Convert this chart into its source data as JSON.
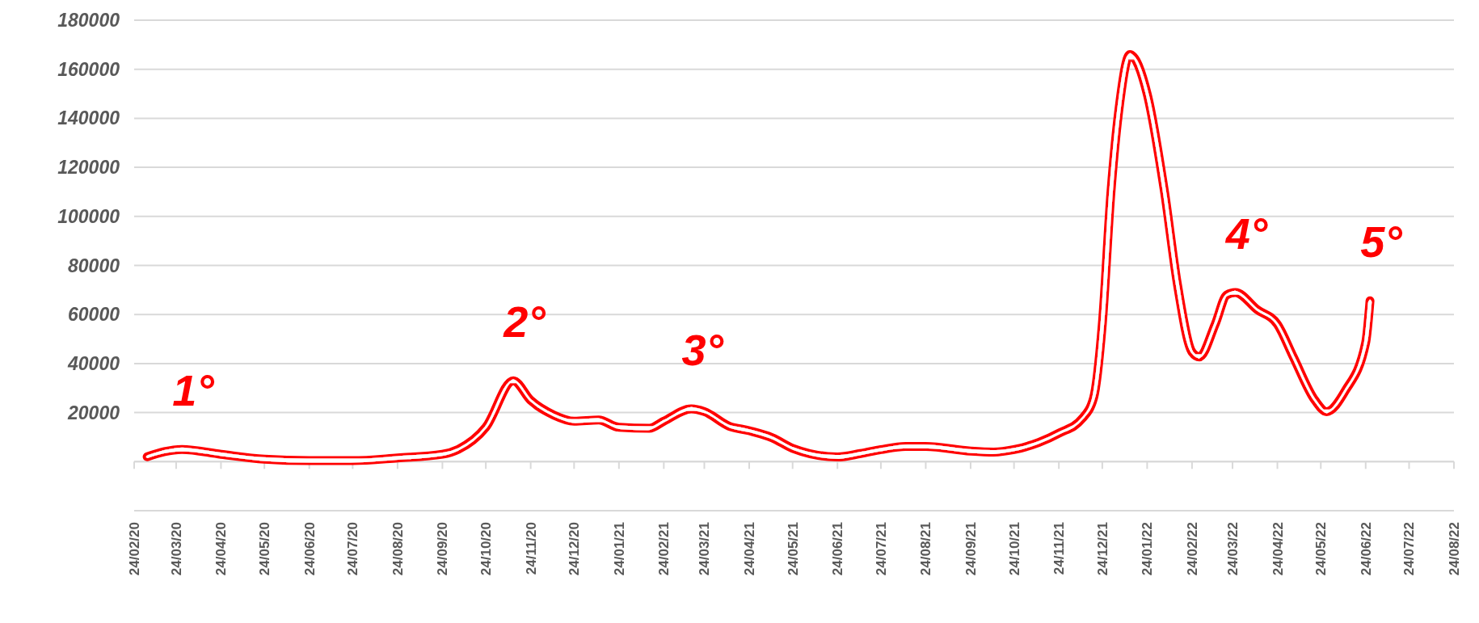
{
  "chart_data": {
    "type": "line",
    "x": [
      "2020-03-04",
      "2020-03-28",
      "2020-04-24",
      "2020-05-24",
      "2020-06-24",
      "2020-07-24",
      "2020-08-24",
      "2020-09-24",
      "2020-10-05",
      "2020-10-24",
      "2020-11-12",
      "2020-11-24",
      "2020-12-10",
      "2020-12-24",
      "2021-01-10",
      "2021-01-24",
      "2021-02-14",
      "2021-02-24",
      "2021-03-15",
      "2021-03-24",
      "2021-04-10",
      "2021-04-24",
      "2021-05-10",
      "2021-05-24",
      "2021-06-24",
      "2021-07-10",
      "2021-07-24",
      "2021-08-10",
      "2021-08-24",
      "2021-09-24",
      "2021-10-10",
      "2021-10-24",
      "2021-11-10",
      "2021-11-24",
      "2021-12-10",
      "2021-12-18",
      "2021-12-24",
      "2021-12-30",
      "2022-01-05",
      "2022-01-12",
      "2022-01-24",
      "2022-02-05",
      "2022-02-14",
      "2022-02-24",
      "2022-03-01",
      "2022-03-12",
      "2022-03-20",
      "2022-03-26",
      "2022-04-10",
      "2022-04-24",
      "2022-05-05",
      "2022-05-20",
      "2022-05-28",
      "2022-06-10",
      "2022-06-24",
      "2022-06-27"
    ],
    "series": [
      {
        "color": "#ff0000",
        "values": [
          2000,
          5000,
          3000,
          1000,
          400,
          400,
          1500,
          3000,
          5000,
          14000,
          33000,
          25000,
          19000,
          16500,
          17000,
          14000,
          13600,
          16500,
          21500,
          20400,
          14500,
          12600,
          9700,
          5400,
          1900,
          3300,
          4900,
          6200,
          6200,
          4300,
          3900,
          4900,
          7800,
          11600,
          17500,
          26000,
          56000,
          110000,
          146000,
          166000,
          150000,
          110000,
          72000,
          44700,
          42700,
          56000,
          68000,
          69000,
          62000,
          56000,
          42700,
          25000,
          20400,
          29000,
          48500,
          65600
        ]
      }
    ],
    "xlim": [
      "2020-02-24",
      "2022-08-24"
    ],
    "xticks": [
      {
        "value": "2020-02-24",
        "label": "24/02/20"
      },
      {
        "value": "2020-03-24",
        "label": "24/03/20"
      },
      {
        "value": "2020-04-24",
        "label": "24/04/20"
      },
      {
        "value": "2020-05-24",
        "label": "24/05/20"
      },
      {
        "value": "2020-06-24",
        "label": "24/06/20"
      },
      {
        "value": "2020-07-24",
        "label": "24/07/20"
      },
      {
        "value": "2020-08-24",
        "label": "24/08/20"
      },
      {
        "value": "2020-09-24",
        "label": "24/09/20"
      },
      {
        "value": "2020-10-24",
        "label": "24/10/20"
      },
      {
        "value": "2020-11-24",
        "label": "24/11/20"
      },
      {
        "value": "2020-12-24",
        "label": "24/12/20"
      },
      {
        "value": "2021-01-24",
        "label": "24/01/21"
      },
      {
        "value": "2021-02-24",
        "label": "24/02/21"
      },
      {
        "value": "2021-03-24",
        "label": "24/03/21"
      },
      {
        "value": "2021-04-24",
        "label": "24/04/21"
      },
      {
        "value": "2021-05-24",
        "label": "24/05/21"
      },
      {
        "value": "2021-06-24",
        "label": "24/06/21"
      },
      {
        "value": "2021-07-24",
        "label": "24/07/21"
      },
      {
        "value": "2021-08-24",
        "label": "24/08/21"
      },
      {
        "value": "2021-09-24",
        "label": "24/09/21"
      },
      {
        "value": "2021-10-24",
        "label": "24/10/21"
      },
      {
        "value": "2021-11-24",
        "label": "24/11/21"
      },
      {
        "value": "2021-12-24",
        "label": "24/12/21"
      },
      {
        "value": "2022-01-24",
        "label": "24/01/22"
      },
      {
        "value": "2022-02-24",
        "label": "24/02/22"
      },
      {
        "value": "2022-03-24",
        "label": "24/03/22"
      },
      {
        "value": "2022-04-24",
        "label": "24/04/22"
      },
      {
        "value": "2022-05-24",
        "label": "24/05/22"
      },
      {
        "value": "2022-06-24",
        "label": "24/06/22"
      },
      {
        "value": "2022-07-24",
        "label": "24/07/22"
      },
      {
        "value": "2022-08-24",
        "label": "24/08/22"
      }
    ],
    "ylim": [
      -20000,
      180000
    ],
    "yticks": [
      {
        "value": -20000,
        "label": null
      },
      {
        "value": 0,
        "label": null
      },
      20000,
      40000,
      60000,
      80000,
      100000,
      120000,
      140000,
      160000,
      180000
    ],
    "grid": "y",
    "marker": "none",
    "line_style": "solid",
    "annotations": [
      {
        "text": "1°",
        "x": "2020-03-28",
        "y": 5000
      },
      {
        "text": "2°",
        "x": "2020-11-12",
        "y": 33000
      },
      {
        "text": "3°",
        "x": "2021-03-15",
        "y": 21500
      },
      {
        "text": "4°",
        "x": "2022-03-26",
        "y": 69000
      },
      {
        "text": "5°",
        "x": "2022-06-27",
        "y": 65600
      }
    ]
  }
}
